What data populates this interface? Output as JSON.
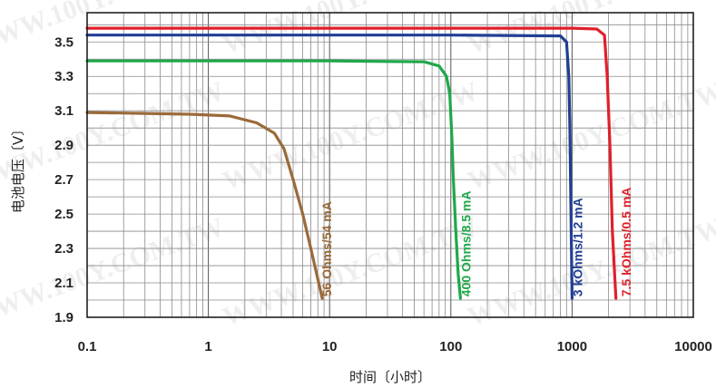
{
  "chart_data": {
    "type": "line",
    "xlabel": "时间〔小时〕",
    "ylabel": "电池电压〔V〕",
    "x_scale": "log",
    "xlim": [
      0.1,
      10000
    ],
    "ylim": [
      1.9,
      3.67
    ],
    "x_ticks": [
      "0.1",
      "1",
      "10",
      "100",
      "1000",
      "10000"
    ],
    "y_ticks": [
      "1.9",
      "2.1",
      "2.3",
      "2.5",
      "2.7",
      "2.9",
      "3.1",
      "3.3",
      "3.5"
    ],
    "grid": true,
    "series": [
      {
        "name": "56 Ohms/54 mA",
        "color": "#9a6a3a",
        "x": [
          0.1,
          0.3,
          0.7,
          1.5,
          2.5,
          3.5,
          4.2,
          5.0,
          6.0,
          7.0,
          8.0,
          8.7
        ],
        "y": [
          3.09,
          3.085,
          3.08,
          3.07,
          3.03,
          2.97,
          2.88,
          2.7,
          2.5,
          2.3,
          2.12,
          2.01
        ]
      },
      {
        "name": "400 Ohms/8.5 mA",
        "color": "#1fa84a",
        "x": [
          0.1,
          1,
          10,
          60,
          80,
          92,
          98,
          102,
          105,
          110,
          115,
          120
        ],
        "y": [
          3.39,
          3.39,
          3.39,
          3.385,
          3.36,
          3.3,
          3.2,
          2.95,
          2.7,
          2.4,
          2.15,
          2.01
        ]
      },
      {
        "name": "3 kOhms/1.2 mA",
        "color": "#203e94",
        "x": [
          0.1,
          1,
          10,
          100,
          800,
          900,
          940,
          960,
          980,
          1000
        ],
        "y": [
          3.54,
          3.54,
          3.54,
          3.54,
          3.535,
          3.5,
          3.3,
          3.0,
          2.5,
          2.01
        ]
      },
      {
        "name": "7.5 kOhms/0.5 mA",
        "color": "#e0202a",
        "x": [
          0.1,
          1,
          10,
          100,
          1000,
          1600,
          1850,
          1950,
          2050,
          2150,
          2300
        ],
        "y": [
          3.58,
          3.58,
          3.58,
          3.58,
          3.58,
          3.575,
          3.54,
          3.3,
          2.9,
          2.4,
          2.01
        ]
      }
    ],
    "series_labels": [
      {
        "text": "56 Ohms/54 mA",
        "at_x": 10.3,
        "at_y": 2.02
      },
      {
        "text": "400 Ohms/8.5 mA",
        "at_x": 145,
        "at_y": 2.02
      },
      {
        "text": "3 kOhms/1.2 mA",
        "at_x": 1210,
        "at_y": 2.02
      },
      {
        "text": "7.5 kOhms/0.5 mA",
        "at_x": 3050,
        "at_y": 2.02
      }
    ],
    "watermark": "WWW.100Y.COM.TW"
  }
}
